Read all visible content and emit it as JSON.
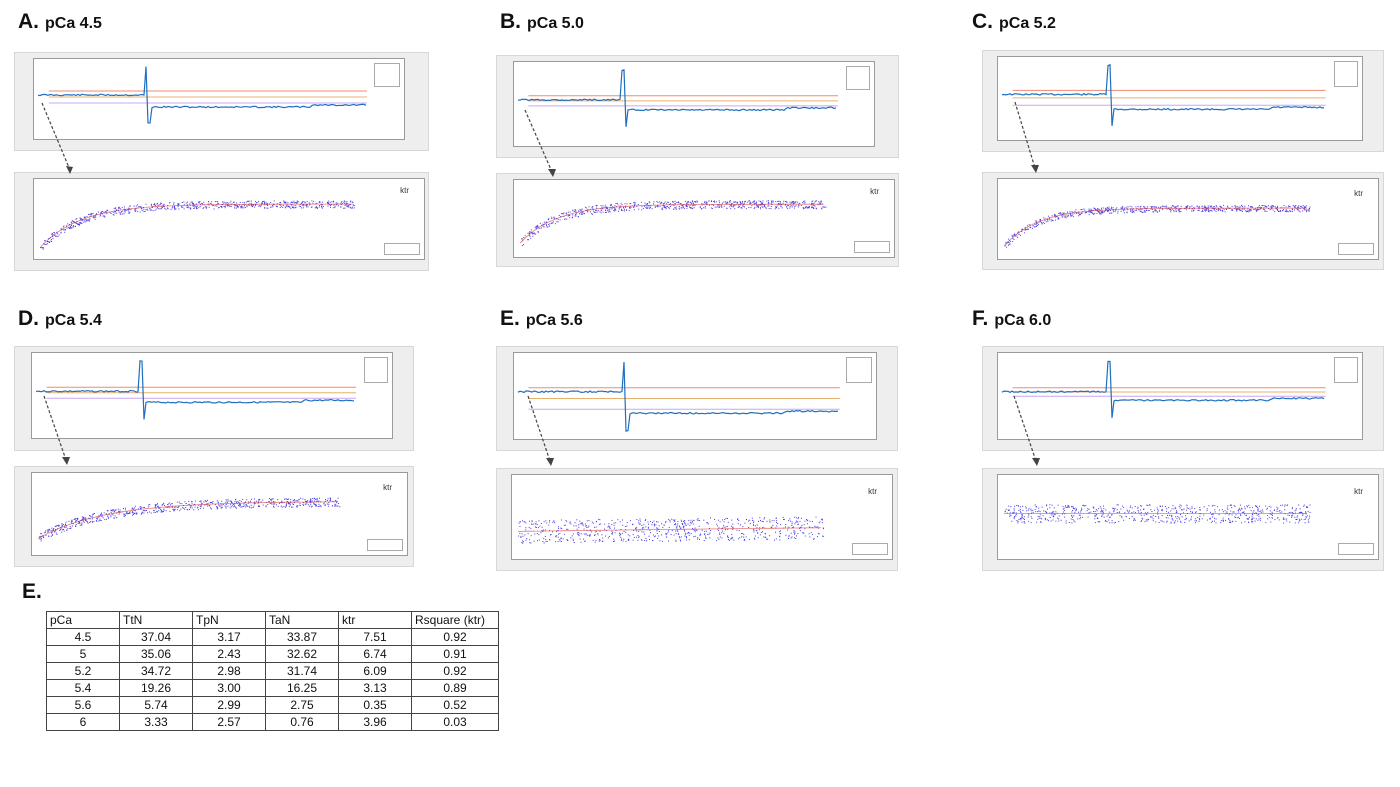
{
  "panels": [
    {
      "letter": "A.",
      "name": "pCa 4.5",
      "ktr_label": "ktr",
      "rise": 0.15,
      "ktr_start": 0.08,
      "ktr_end": 0.72,
      "ktr_tau": 0.13,
      "ktr_noise": 0.07
    },
    {
      "letter": "B.",
      "name": "pCa 5.0",
      "ktr_label": "ktr",
      "rise": 0.12,
      "ktr_start": 0.12,
      "ktr_end": 0.72,
      "ktr_tau": 0.12,
      "ktr_noise": 0.08
    },
    {
      "letter": "C.",
      "name": "pCa 5.2",
      "ktr_label": "ktr",
      "rise": 0.18,
      "ktr_start": 0.1,
      "ktr_end": 0.66,
      "ktr_tau": 0.11,
      "ktr_noise": 0.06
    },
    {
      "letter": "D.",
      "name": "pCa 5.4",
      "ktr_label": "ktr",
      "rise": 0.13,
      "ktr_start": 0.15,
      "ktr_end": 0.68,
      "ktr_tau": 0.22,
      "ktr_noise": 0.08
    },
    {
      "letter": "E.",
      "name": "pCa 5.6",
      "ktr_label": "ktr",
      "rise": 0.25,
      "ktr_start": 0.3,
      "ktr_end": 0.48,
      "ktr_tau": 3.0,
      "ktr_noise": 0.2
    },
    {
      "letter": "F.",
      "name": "pCa 6.0",
      "ktr_label": "ktr",
      "rise": 0.1,
      "ktr_start": 0.55,
      "ktr_end": 0.55,
      "ktr_tau": 1.0,
      "ktr_noise": 0.16
    }
  ],
  "colors": {
    "trace": "#1f6fc0",
    "scatter": "#4a3fe0",
    "fit": "#e04040",
    "ref_lines": [
      "#f08a70",
      "#e8b070",
      "#c8a8f0"
    ],
    "arrow": "#444444"
  },
  "table": {
    "title": "E.",
    "headers": [
      "pCa",
      "TtN",
      "TpN",
      "TaN",
      "ktr",
      "Rsquare (ktr)"
    ],
    "rows": [
      [
        "4.5",
        "37.04",
        "3.17",
        "33.87",
        "7.51",
        "0.92"
      ],
      [
        "5",
        "35.06",
        "2.43",
        "32.62",
        "6.74",
        "0.91"
      ],
      [
        "5.2",
        "34.72",
        "2.98",
        "31.74",
        "6.09",
        "0.92"
      ],
      [
        "5.4",
        "19.26",
        "3.00",
        "16.25",
        "3.13",
        "0.89"
      ],
      [
        "5.6",
        "5.74",
        "2.99",
        "2.75",
        "0.35",
        "0.52"
      ],
      [
        "6",
        "3.33",
        "2.57",
        "0.76",
        "3.96",
        "0.03"
      ]
    ]
  },
  "chart_data": {
    "type": "table",
    "title": "E.",
    "columns": [
      "pCa",
      "TtN",
      "TpN",
      "TaN",
      "ktr",
      "Rsquare (ktr)"
    ],
    "rows": [
      [
        4.5,
        37.04,
        3.17,
        33.87,
        7.51,
        0.92
      ],
      [
        5,
        35.06,
        2.43,
        32.62,
        6.74,
        0.91
      ],
      [
        5.2,
        34.72,
        2.98,
        31.74,
        6.09,
        0.92
      ],
      [
        5.4,
        19.26,
        3.0,
        16.25,
        3.13,
        0.89
      ],
      [
        5.6,
        5.74,
        2.99,
        2.75,
        0.35,
        0.52
      ],
      [
        6,
        3.33,
        2.57,
        0.76,
        3.96,
        0.03
      ]
    ]
  }
}
